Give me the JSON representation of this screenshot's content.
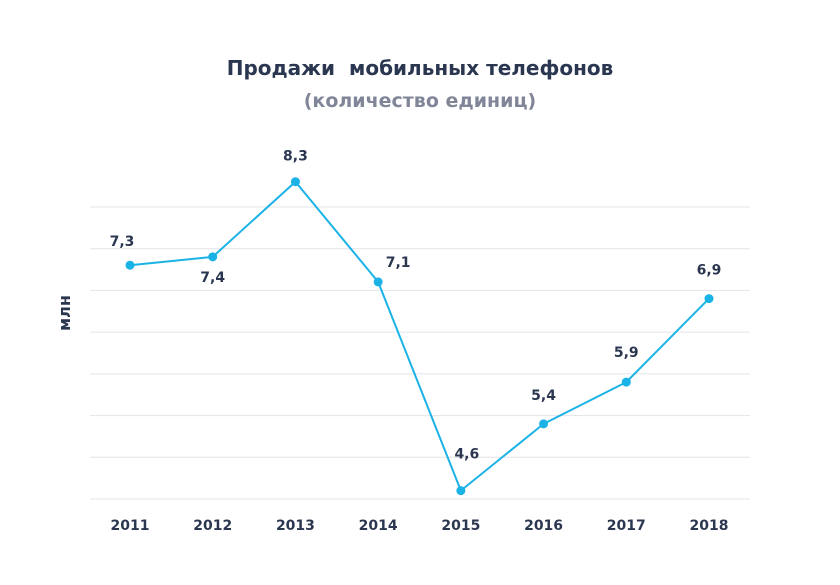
{
  "chart_data": {
    "type": "line",
    "title": "Продажи  мобильных телефонов",
    "subtitle": "(количество единиц)",
    "xlabel": "",
    "ylabel": "млн",
    "categories": [
      "2011",
      "2012",
      "2013",
      "2014",
      "2015",
      "2016",
      "2017",
      "2018"
    ],
    "series": [
      {
        "values": [
          7.3,
          7.4,
          8.3,
          7.1,
          4.6,
          5.4,
          5.9,
          6.9
        ],
        "labels": [
          "7,3",
          "7,4",
          "8,3",
          "7,1",
          "4,6",
          "5,4",
          "5,9",
          "6,9"
        ],
        "color": "#1bb3e6"
      }
    ],
    "ylim": [
      4.5,
      8.5
    ],
    "grid": true,
    "gridline_count": 8
  }
}
